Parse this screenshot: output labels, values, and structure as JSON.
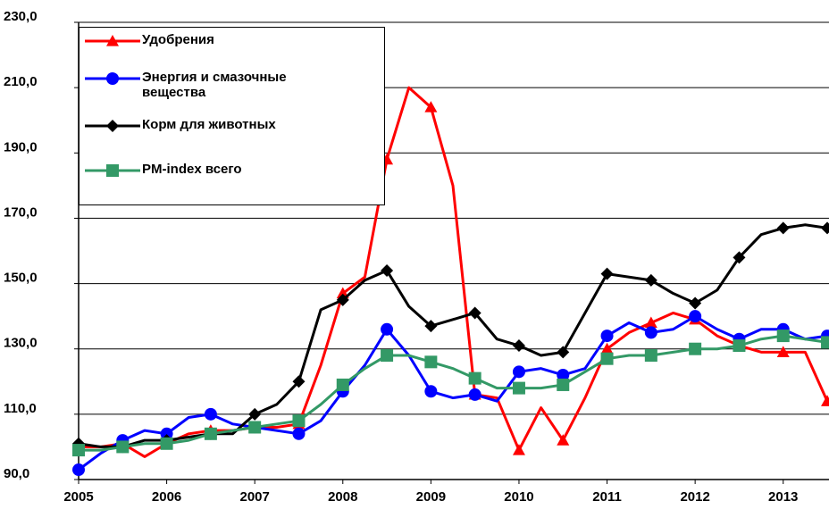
{
  "chart_data": {
    "type": "line",
    "x": [
      2005,
      2005.25,
      2005.5,
      2005.75,
      2006,
      2006.25,
      2006.5,
      2006.75,
      2007,
      2007.25,
      2007.5,
      2007.75,
      2008,
      2008.25,
      2008.5,
      2008.75,
      2009,
      2009.25,
      2009.5,
      2009.75,
      2010,
      2010.25,
      2010.5,
      2010.75,
      2011,
      2011.25,
      2011.5,
      2011.75,
      2012,
      2012.25,
      2012.5,
      2012.75,
      2013,
      2013.25,
      2013.5
    ],
    "series": [
      {
        "name": "Удобрения",
        "color": "#ff0000",
        "marker": "triangle",
        "values": [
          100,
          100,
          101,
          97,
          101,
          104,
          105,
          105,
          106,
          106,
          107,
          125,
          147,
          152,
          188,
          210,
          204,
          180,
          116,
          115,
          99,
          112,
          102,
          115,
          130,
          135,
          138,
          141,
          139,
          134,
          131,
          129,
          129,
          129,
          114
        ]
      },
      {
        "name": "Энергия и смазочные вещества",
        "color": "#0000ff",
        "marker": "circle",
        "values": [
          93,
          98,
          102,
          105,
          104,
          109,
          110,
          107,
          106,
          105,
          104,
          108,
          117,
          125,
          136,
          128,
          117,
          115,
          116,
          114,
          123,
          124,
          122,
          124,
          134,
          138,
          135,
          136,
          140,
          136,
          133,
          136,
          136,
          133,
          134
        ]
      },
      {
        "name": "Корм для животных",
        "color": "#000000",
        "marker": "diamond",
        "values": [
          101,
          100,
          100,
          102,
          102,
          103,
          104,
          104,
          110,
          113,
          120,
          142,
          145,
          151,
          154,
          143,
          137,
          139,
          141,
          133,
          131,
          128,
          129,
          141,
          153,
          152,
          151,
          147,
          144,
          148,
          158,
          165,
          167,
          168,
          167
        ]
      },
      {
        "name": "PM-index всего",
        "color": "#339966",
        "marker": "square",
        "values": [
          99,
          99,
          100,
          101,
          101,
          102,
          104,
          105,
          106,
          107,
          108,
          113,
          119,
          124,
          128,
          128,
          126,
          124,
          121,
          118,
          118,
          118,
          119,
          123,
          127,
          128,
          128,
          129,
          130,
          130,
          131,
          133,
          134,
          133,
          132
        ]
      }
    ],
    "xlim": [
      2005,
      2013.52
    ],
    "xticks": [
      2005,
      2006,
      2007,
      2008,
      2009,
      2010,
      2011,
      2012,
      2013
    ],
    "ylim": [
      90,
      230
    ],
    "yticks": [
      {
        "value": 90,
        "label": "90,0"
      },
      {
        "value": 110,
        "label": "110,0"
      },
      {
        "value": 130,
        "label": "130,0"
      },
      {
        "value": 150,
        "label": "150,0"
      },
      {
        "value": 170,
        "label": "170,0"
      },
      {
        "value": 190,
        "label": "190,0"
      },
      {
        "value": 210,
        "label": "210,0"
      },
      {
        "value": 230,
        "label": "230,0"
      }
    ],
    "grid": true,
    "legend": "upper left"
  }
}
